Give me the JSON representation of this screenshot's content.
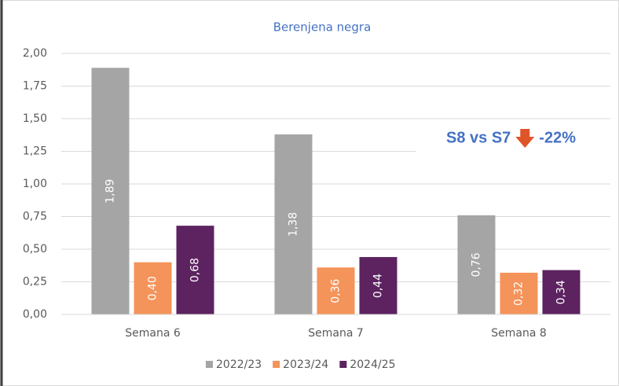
{
  "chart_data": {
    "type": "bar",
    "title": "Berenjena negra",
    "categories": [
      "Semana 6",
      "Semana 7",
      "Semana 8"
    ],
    "series": [
      {
        "name": "2022/23",
        "color": "#a5a5a5",
        "values": [
          1.89,
          1.38,
          0.76
        ],
        "value_labels": [
          "1,89",
          "1,38",
          "0,76"
        ]
      },
      {
        "name": "2023/24",
        "color": "#f4935a",
        "values": [
          0.4,
          0.36,
          0.32
        ],
        "value_labels": [
          "0,40",
          "0,36",
          "0,32"
        ]
      },
      {
        "name": "2024/25",
        "color": "#5c2360",
        "values": [
          0.68,
          0.44,
          0.34
        ],
        "value_labels": [
          "0,68",
          "0,44",
          "0,34"
        ]
      }
    ],
    "ylim": [
      0,
      2
    ],
    "yticks": [
      {
        "value": 0,
        "label": "0,00"
      },
      {
        "value": 0.25,
        "label": "0,25"
      },
      {
        "value": 0.5,
        "label": "0,50"
      },
      {
        "value": 0.75,
        "label": "0,75"
      },
      {
        "value": 1,
        "label": "1,00"
      },
      {
        "value": 1.25,
        "label": "1,25"
      },
      {
        "value": 1.5,
        "label": "1,50"
      },
      {
        "value": 1.75,
        "label": "1,75"
      },
      {
        "value": 2,
        "label": "2,00"
      }
    ],
    "grid": true,
    "legend": "bottom",
    "annotation": {
      "comparison": "S8 vs S7",
      "change": "-22%"
    }
  }
}
